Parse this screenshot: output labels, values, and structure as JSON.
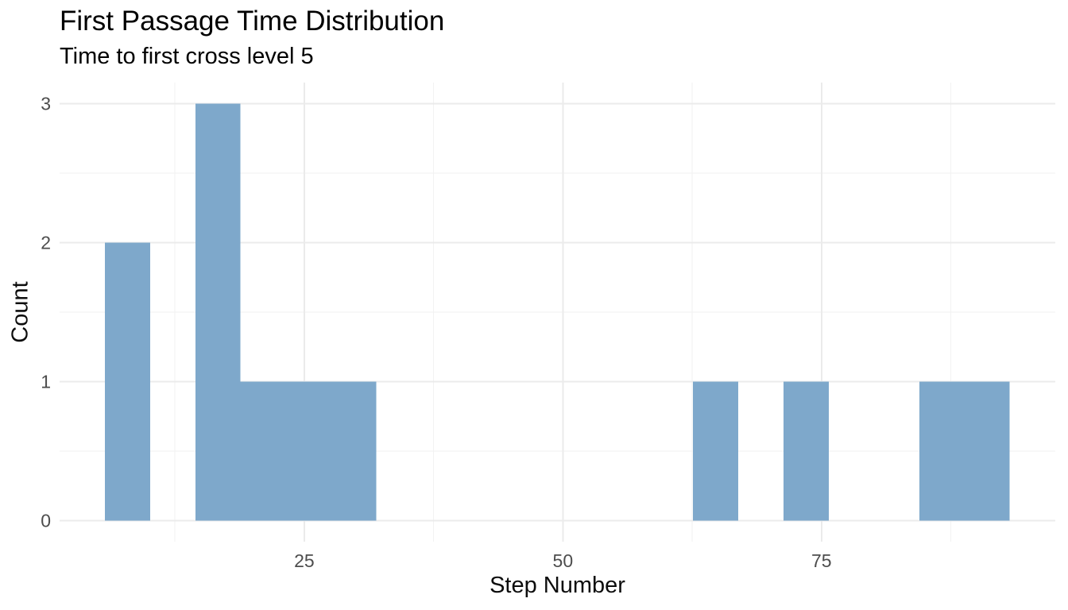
{
  "page": {
    "background": "#FFFFFF"
  },
  "chart_data": {
    "type": "bar",
    "subtype": "histogram",
    "title": "First Passage Time Distribution",
    "subtitle": "Time to first cross level 5",
    "xlabel": "Step Number",
    "ylabel": "Count",
    "bar_color": "#7EA8CB",
    "bar_color_base": "#4682B4",
    "bar_alpha": 0.7,
    "bins": {
      "edges": [
        5.72,
        10.09,
        14.47,
        18.84,
        23.21,
        27.59,
        31.96,
        36.34,
        40.71,
        45.08,
        49.46,
        53.83,
        58.21,
        62.58,
        66.95,
        71.33,
        75.7,
        80.08,
        84.45,
        88.82,
        93.2
      ],
      "counts": [
        2,
        0,
        3,
        1,
        1,
        1,
        0,
        0,
        0,
        0,
        0,
        0,
        0,
        1,
        0,
        1,
        0,
        0,
        1,
        1
      ]
    },
    "x_ticks": [
      25,
      50,
      75
    ],
    "x_tick_labels": [
      "25",
      "50",
      "75"
    ],
    "x_minor_ticks": [
      12.5,
      37.5,
      62.5,
      87.5
    ],
    "y_ticks": [
      0,
      1,
      2,
      3
    ],
    "y_tick_labels": [
      "0",
      "1",
      "2",
      "3"
    ],
    "y_minor_ticks": [
      0.5,
      1.5,
      2.5
    ],
    "xlim": [
      1.35,
      97.6
    ],
    "ylim": [
      -0.15,
      3.15
    ],
    "grid": true,
    "legend": false,
    "grid_major_color": "#EBEBEB",
    "grid_minor_color": "#F2F2F2",
    "tick_label_color": "#4D4D4D",
    "axis_title_color": "#0d0d0d",
    "title_color": "#000000"
  }
}
